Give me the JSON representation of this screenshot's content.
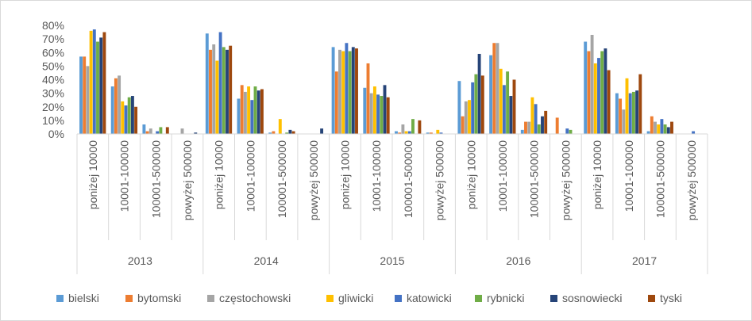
{
  "chart_data": {
    "type": "bar",
    "title": "",
    "xlabel": "",
    "ylabel": "",
    "ylim": [
      0,
      80
    ],
    "yticks": [
      "0%",
      "10%",
      "20%",
      "30%",
      "40%",
      "50%",
      "60%",
      "70%",
      "80%"
    ],
    "years": [
      "2013",
      "2014",
      "2015",
      "2016",
      "2017"
    ],
    "subcategories": [
      "poniżej 10000",
      "10001-100000",
      "100001-500000",
      "powyżej 500000"
    ],
    "legend_position": "bottom",
    "series": [
      {
        "name": "bielski",
        "color": "#5b9bd5",
        "values": [
          57,
          35,
          7,
          0,
          74,
          26,
          1,
          0,
          64,
          34,
          2,
          1,
          39,
          58,
          3,
          0,
          68,
          30,
          2,
          0
        ]
      },
      {
        "name": "bytomski",
        "color": "#ed7d31",
        "values": [
          57,
          41,
          2,
          0,
          62,
          36,
          2,
          0,
          46,
          52,
          1,
          1,
          13,
          67,
          9,
          12,
          61,
          26,
          13,
          0
        ]
      },
      {
        "name": "częstochowski",
        "color": "#a5a5a5",
        "values": [
          50,
          43,
          4,
          4,
          66,
          31,
          0,
          0,
          62,
          30,
          7,
          0,
          24,
          67,
          9,
          0,
          73,
          18,
          9,
          0
        ]
      },
      {
        "name": "gliwicki",
        "color": "#ffc000",
        "values": [
          76,
          24,
          0,
          0,
          54,
          35,
          11,
          0,
          61,
          35,
          2,
          3,
          25,
          48,
          27,
          0,
          52,
          41,
          7,
          0
        ]
      },
      {
        "name": "katowicki",
        "color": "#4472c4",
        "values": [
          77,
          21,
          2,
          0,
          75,
          25,
          0,
          0,
          67,
          29,
          2,
          1,
          38,
          36,
          22,
          4,
          56,
          30,
          11,
          2
        ]
      },
      {
        "name": "rybnicki",
        "color": "#70ad47",
        "values": [
          68,
          27,
          5,
          0,
          64,
          35,
          1,
          0,
          61,
          28,
          11,
          0,
          44,
          46,
          7,
          3,
          61,
          31,
          7,
          0
        ]
      },
      {
        "name": "sosnowiecki",
        "color": "#264478",
        "values": [
          71,
          28,
          0,
          1,
          62,
          32,
          3,
          4,
          64,
          36,
          0,
          0,
          59,
          28,
          13,
          0,
          63,
          32,
          5,
          0
        ]
      },
      {
        "name": "tyski",
        "color": "#9e480e",
        "values": [
          75,
          20,
          5,
          0,
          65,
          33,
          2,
          0,
          63,
          27,
          10,
          0,
          43,
          40,
          17,
          0,
          47,
          44,
          9,
          0
        ]
      }
    ]
  }
}
